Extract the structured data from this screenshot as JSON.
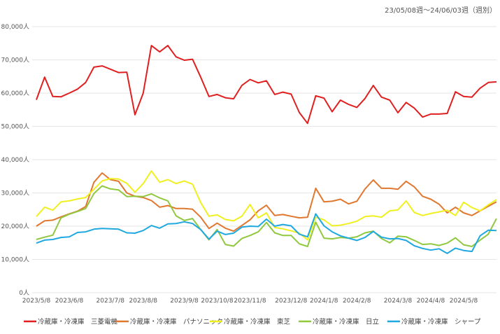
{
  "chart_data": {
    "type": "line",
    "period_label": "23/05/08週～24/06/03週（週別）",
    "y_unit": "人",
    "ylim": [
      0,
      80000
    ],
    "y_ticks": [
      0,
      10000,
      20000,
      30000,
      40000,
      50000,
      60000,
      70000,
      80000
    ],
    "y_tick_labels": [
      "0人",
      "10,000人",
      "20,000人",
      "30,000人",
      "40,000人",
      "50,000人",
      "60,000人",
      "70,000人",
      "80,000人"
    ],
    "grid": true,
    "x_ticks": [
      {
        "index": 0,
        "label": "2023/5/8"
      },
      {
        "index": 4,
        "label": "2023/6/8"
      },
      {
        "index": 9,
        "label": "2023/7/8"
      },
      {
        "index": 13,
        "label": "2023/8/8"
      },
      {
        "index": 18,
        "label": "2023/9/8"
      },
      {
        "index": 22,
        "label": "2023/10/8"
      },
      {
        "index": 26,
        "label": "2023/11/8"
      },
      {
        "index": 31,
        "label": "2023/12/8"
      },
      {
        "index": 35,
        "label": "2024/1/8"
      },
      {
        "index": 39,
        "label": "2024/2/8"
      },
      {
        "index": 44,
        "label": "2024/3/8"
      },
      {
        "index": 48,
        "label": "2024/4/8"
      },
      {
        "index": 52,
        "label": "2024/5/8"
      }
    ],
    "series": [
      {
        "name": "冷蔵庫・冷凍庫　三菱電機",
        "color": "#e02020",
        "values": [
          58000,
          64800,
          59000,
          58900,
          60000,
          61200,
          63200,
          67800,
          68200,
          67200,
          66200,
          66300,
          53500,
          60000,
          74300,
          72400,
          74300,
          70900,
          69900,
          70200,
          64800,
          59000,
          59600,
          58600,
          58300,
          62300,
          64100,
          63100,
          63700,
          59600,
          60300,
          59700,
          54200,
          50900,
          59200,
          58500,
          54400,
          57900,
          56600,
          55700,
          58400,
          62300,
          58800,
          57900,
          54100,
          57200,
          55500,
          52800,
          53700,
          53700,
          53900,
          60400,
          59000,
          58800,
          61500,
          63200,
          63400
        ]
      },
      {
        "name": "冷蔵庫・冷凍庫　パナソニック",
        "color": "#e07830",
        "values": [
          20000,
          21600,
          21800,
          22800,
          23700,
          24500,
          25900,
          33200,
          36000,
          34000,
          33500,
          30000,
          29000,
          28600,
          27700,
          25700,
          26200,
          25300,
          25300,
          25100,
          22700,
          19300,
          20900,
          19400,
          18500,
          20200,
          21900,
          24600,
          26300,
          23200,
          23500,
          23000,
          22500,
          22700,
          31400,
          27300,
          27500,
          28100,
          26700,
          27500,
          31200,
          33900,
          31400,
          31400,
          31100,
          33500,
          31800,
          29000,
          28100,
          26600,
          24000,
          25700,
          24000,
          23200,
          24600,
          26000,
          27300
        ]
      },
      {
        "name": "冷蔵庫・冷凍庫　東芝",
        "color": "#f0f020",
        "values": [
          22900,
          25700,
          24800,
          27300,
          27600,
          28200,
          28600,
          31100,
          33600,
          34300,
          34200,
          32900,
          30200,
          32800,
          36600,
          33200,
          34000,
          32800,
          33600,
          32600,
          27100,
          23000,
          23400,
          22000,
          21600,
          23000,
          26500,
          22500,
          24000,
          19600,
          19200,
          18600,
          17900,
          15900,
          22700,
          21900,
          20100,
          20300,
          20800,
          21500,
          22900,
          23100,
          22700,
          24600,
          24900,
          27600,
          24100,
          23200,
          23800,
          24300,
          24800,
          23200,
          27200,
          25600,
          24600,
          26400,
          28000
        ]
      },
      {
        "name": "冷蔵庫・冷凍庫　日立",
        "color": "#90c840",
        "values": [
          16000,
          16700,
          17300,
          22500,
          23600,
          24400,
          25300,
          29800,
          32100,
          31200,
          30900,
          28900,
          29000,
          28900,
          29700,
          28500,
          27600,
          23100,
          21700,
          22300,
          19000,
          15900,
          19000,
          14500,
          14000,
          16300,
          17200,
          18300,
          21100,
          18000,
          17200,
          17200,
          14700,
          13900,
          21200,
          16400,
          16200,
          16600,
          16400,
          16800,
          18000,
          18500,
          16300,
          15000,
          17000,
          16800,
          15700,
          14500,
          14700,
          14200,
          14900,
          16500,
          14400,
          13900,
          15800,
          17600,
          22300
        ]
      },
      {
        "name": "冷蔵庫・冷凍庫　シャープ",
        "color": "#20a8e0",
        "values": [
          14900,
          15800,
          16000,
          16600,
          16800,
          18100,
          18300,
          19100,
          19300,
          19200,
          19100,
          18000,
          17900,
          18700,
          20200,
          19400,
          20700,
          20800,
          21300,
          20800,
          19000,
          16100,
          18500,
          17500,
          17900,
          19700,
          20000,
          19900,
          22100,
          20000,
          20500,
          20100,
          17600,
          16800,
          23700,
          20100,
          18300,
          17100,
          16400,
          15700,
          16600,
          18400,
          16700,
          16200,
          16300,
          15700,
          14100,
          13300,
          12800,
          13200,
          11800,
          13400,
          12700,
          12400,
          17100,
          18800,
          18700
        ]
      }
    ]
  }
}
